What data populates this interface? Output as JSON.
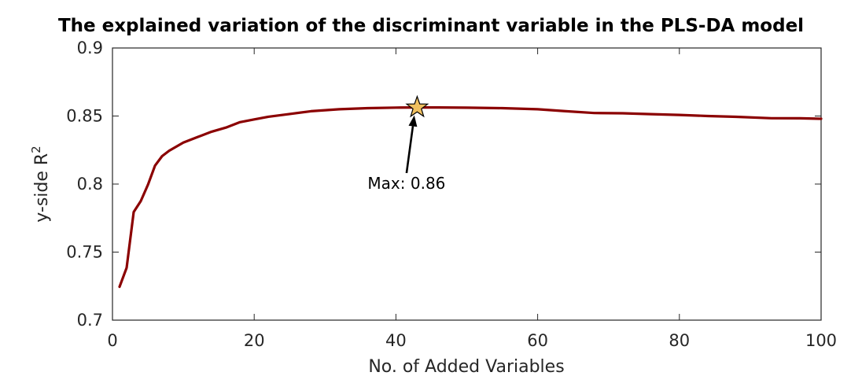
{
  "chart_data": {
    "type": "line",
    "title": "The explained variation of the discriminant variable in the PLS-DA model",
    "xlabel": "No. of Added Variables",
    "ylabel": "y-side R",
    "ylabel_superscript": "2",
    "xlim": [
      0,
      100
    ],
    "ylim": [
      0.7,
      0.9
    ],
    "xticks": [
      0,
      20,
      40,
      60,
      80,
      100
    ],
    "xtick_labels": [
      "0",
      "20",
      "40",
      "60",
      "80",
      "100"
    ],
    "yticks": [
      0.7,
      0.75,
      0.8,
      0.85,
      0.9
    ],
    "ytick_labels": [
      "0.7",
      "0.75",
      "0.8",
      "0.85",
      "0.9"
    ],
    "grid": false,
    "series": [
      {
        "name": "y-side R2",
        "color": "#8b0000",
        "x": [
          1,
          2,
          3,
          4,
          5,
          6,
          7,
          8,
          10,
          12,
          14,
          16,
          18,
          20,
          22,
          25,
          28,
          32,
          36,
          40,
          43,
          46,
          50,
          55,
          60,
          64,
          68,
          72,
          76,
          80,
          84,
          88,
          93,
          97,
          100
        ],
        "y": [
          0.7245,
          0.7385,
          0.7795,
          0.7875,
          0.7995,
          0.8135,
          0.8205,
          0.8245,
          0.8305,
          0.8345,
          0.8385,
          0.8415,
          0.8455,
          0.8475,
          0.8495,
          0.8515,
          0.8535,
          0.855,
          0.8558,
          0.8562,
          0.8563,
          0.8563,
          0.8561,
          0.8558,
          0.855,
          0.8535,
          0.8522,
          0.852,
          0.8514,
          0.8508,
          0.85,
          0.8494,
          0.8484,
          0.8483,
          0.848
        ]
      }
    ],
    "marker": {
      "x": 43,
      "y": 0.8563,
      "symbol": "star",
      "fill": "#f0c060"
    },
    "annotation": {
      "text": "Max: 0.86",
      "arrow_from": [
        41.5,
        0.8
      ],
      "arrow_to": [
        42.6,
        0.8505
      ]
    }
  }
}
